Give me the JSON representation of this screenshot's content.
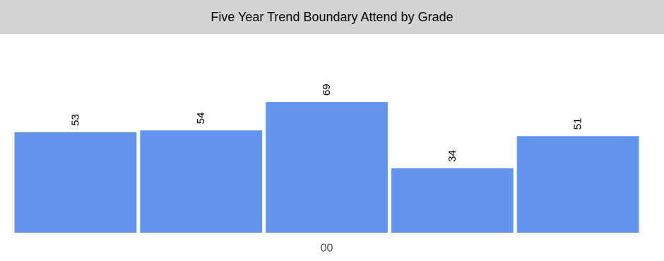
{
  "colors": {
    "bar": "#6495ED",
    "title_strip_bg": "#D3D3D3",
    "label_text": "#000000",
    "axis_text": "#4D4D4D"
  },
  "chart_data": {
    "type": "bar",
    "title": "Five Year Trend Boundary Attend by Grade",
    "xlabel": "",
    "ylabel": "",
    "categories": [
      "00"
    ],
    "series": [
      {
        "values": [
          53
        ]
      },
      {
        "values": [
          54
        ]
      },
      {
        "values": [
          69
        ]
      },
      {
        "values": [
          34
        ]
      },
      {
        "values": [
          51
        ]
      }
    ],
    "ylim": [
      0,
      90
    ],
    "grid": false,
    "legend": "none"
  }
}
